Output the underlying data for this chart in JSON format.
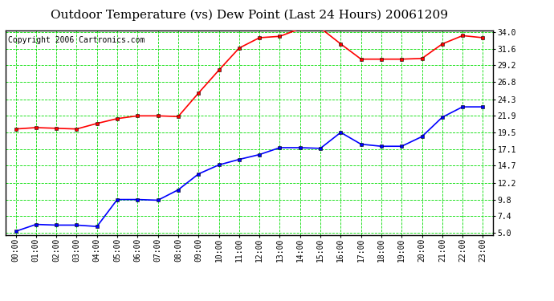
{
  "title": "Outdoor Temperature (vs) Dew Point (Last 24 Hours) 20061209",
  "copyright": "Copyright 2006 Cartronics.com",
  "x_labels": [
    "00:00",
    "01:00",
    "02:00",
    "03:00",
    "04:00",
    "05:00",
    "06:00",
    "07:00",
    "08:00",
    "09:00",
    "10:00",
    "11:00",
    "12:00",
    "13:00",
    "14:00",
    "15:00",
    "16:00",
    "17:00",
    "18:00",
    "19:00",
    "20:00",
    "21:00",
    "22:00",
    "23:00"
  ],
  "temp_data": [
    20.0,
    20.2,
    20.1,
    20.0,
    20.8,
    21.5,
    21.9,
    21.9,
    21.8,
    25.2,
    28.5,
    31.7,
    33.2,
    33.4,
    34.5,
    34.6,
    32.3,
    30.1,
    30.1,
    30.1,
    30.2,
    32.3,
    33.5,
    33.2
  ],
  "dew_data": [
    5.2,
    6.2,
    6.1,
    6.1,
    5.9,
    9.8,
    9.8,
    9.7,
    11.2,
    13.5,
    14.8,
    15.6,
    16.3,
    17.3,
    17.3,
    17.2,
    19.5,
    17.8,
    17.5,
    17.5,
    18.9,
    21.7,
    23.2,
    23.2
  ],
  "temp_color": "#ff0000",
  "dew_color": "#0000ff",
  "grid_color": "#00dd00",
  "bg_color": "#ffffff",
  "plot_bg_color": "#ffffff",
  "border_color": "#000000",
  "title_color": "#000000",
  "y_ticks": [
    5.0,
    7.4,
    9.8,
    12.2,
    14.7,
    17.1,
    19.5,
    21.9,
    24.3,
    26.8,
    29.2,
    31.6,
    34.0
  ],
  "ylim": [
    5.0,
    34.0
  ],
  "marker": "s",
  "marker_size": 2.5,
  "line_width": 1.2,
  "title_fontsize": 11,
  "tick_fontsize": 7,
  "copyright_fontsize": 7
}
